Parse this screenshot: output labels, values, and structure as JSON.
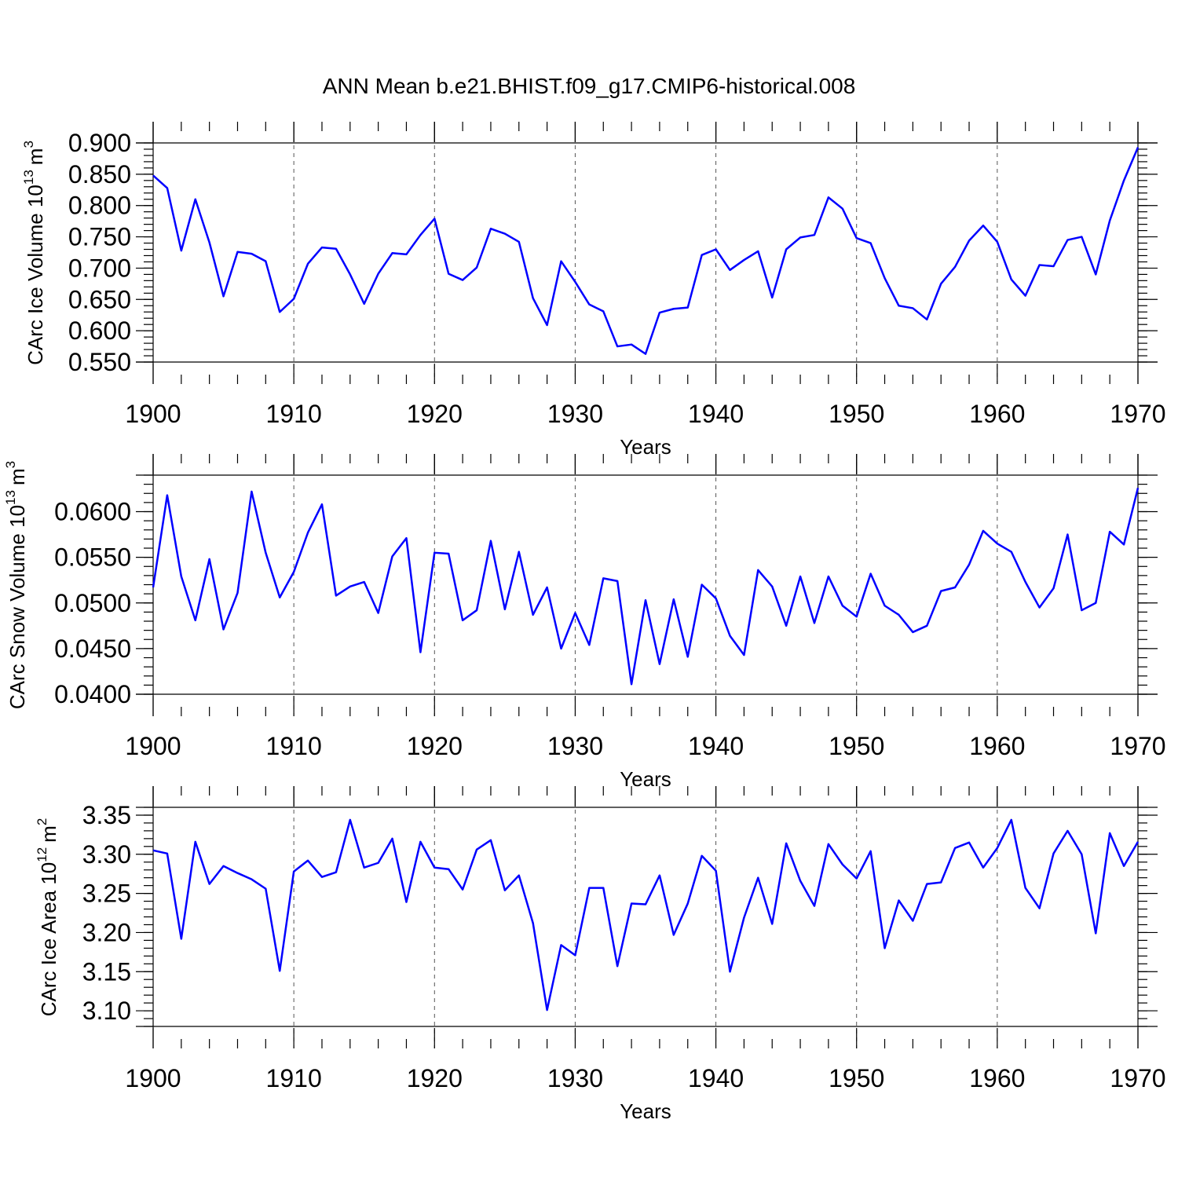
{
  "figure": {
    "title": "ANN Mean b.e21.BHIST.f09_g17.CMIP6-historical.008"
  },
  "chart_data": [
    {
      "type": "line",
      "title": "",
      "ylabel": "CArc Ice Volume 10",
      "ylabel_exp": "13",
      "ylabel_unit": "m",
      "ylabel_unit_exp": "3",
      "xlabel": "Years",
      "xlim": [
        1900,
        1970
      ],
      "ylim": [
        0.55,
        0.9
      ],
      "yticks": [
        0.55,
        0.6,
        0.65,
        0.7,
        0.75,
        0.8,
        0.85,
        0.9
      ],
      "ytick_labels": [
        "0.550",
        "0.600",
        "0.650",
        "0.700",
        "0.750",
        "0.800",
        "0.850",
        "0.900"
      ],
      "xticks": [
        1900,
        1910,
        1920,
        1930,
        1940,
        1950,
        1960,
        1970
      ],
      "xtick_labels": [
        "1900",
        "1910",
        "1920",
        "1930",
        "1940",
        "1950",
        "1960",
        "1970"
      ],
      "grid": "vertical-dashed",
      "color": "#0000ff",
      "series": [
        {
          "values": [
            0.848,
            0.828,
            0.728,
            0.81,
            0.741,
            0.655,
            0.726,
            0.723,
            0.711,
            0.63,
            0.651,
            0.707,
            0.733,
            0.731,
            0.69,
            0.643,
            0.691,
            0.724,
            0.722,
            0.753,
            0.779,
            0.691,
            0.681,
            0.701,
            0.763,
            0.755,
            0.742,
            0.652,
            0.609,
            0.711,
            0.678,
            0.642,
            0.631,
            0.575,
            0.578,
            0.563,
            0.629,
            0.635,
            0.637,
            0.721,
            0.73,
            0.697,
            0.713,
            0.727,
            0.653,
            0.73,
            0.749,
            0.753,
            0.813,
            0.795,
            0.748,
            0.74,
            0.684,
            0.64,
            0.636,
            0.618,
            0.675,
            0.702,
            0.744,
            0.768,
            0.742,
            0.682,
            0.656,
            0.705,
            0.703,
            0.745,
            0.75,
            0.69,
            0.776,
            0.84,
            0.893
          ]
        }
      ]
    },
    {
      "type": "line",
      "title": "",
      "ylabel": "CArc Snow Volume 10",
      "ylabel_exp": "13",
      "ylabel_unit": "m",
      "ylabel_unit_exp": "3",
      "xlabel": "Years",
      "xlim": [
        1900,
        1970
      ],
      "ylim": [
        0.04,
        0.064
      ],
      "yticks": [
        0.04,
        0.045,
        0.05,
        0.055,
        0.06
      ],
      "ytick_labels": [
        "0.0400",
        "0.0450",
        "0.0500",
        "0.0550",
        "0.0600"
      ],
      "xticks": [
        1900,
        1910,
        1920,
        1930,
        1940,
        1950,
        1960,
        1970
      ],
      "xtick_labels": [
        "1900",
        "1910",
        "1920",
        "1930",
        "1940",
        "1950",
        "1960",
        "1970"
      ],
      "grid": "vertical-dashed",
      "color": "#0000ff",
      "series": [
        {
          "values": [
            0.0517,
            0.0618,
            0.0529,
            0.0481,
            0.0548,
            0.0471,
            0.0511,
            0.0622,
            0.0555,
            0.0506,
            0.0534,
            0.0577,
            0.0608,
            0.0508,
            0.0518,
            0.0523,
            0.0489,
            0.0551,
            0.0571,
            0.0446,
            0.0555,
            0.0554,
            0.0481,
            0.0492,
            0.0568,
            0.0493,
            0.0556,
            0.0487,
            0.0517,
            0.045,
            0.0489,
            0.0454,
            0.0527,
            0.0524,
            0.0411,
            0.0503,
            0.0433,
            0.0504,
            0.0441,
            0.052,
            0.0505,
            0.0464,
            0.0443,
            0.0536,
            0.0518,
            0.0475,
            0.0529,
            0.0478,
            0.0529,
            0.0497,
            0.0485,
            0.0532,
            0.0497,
            0.0487,
            0.0468,
            0.0475,
            0.0513,
            0.0517,
            0.0542,
            0.0579,
            0.0565,
            0.0556,
            0.0523,
            0.0495,
            0.0516,
            0.0575,
            0.0492,
            0.05,
            0.0578,
            0.0564,
            0.0626
          ]
        }
      ]
    },
    {
      "type": "line",
      "title": "",
      "ylabel": "CArc Ice Area 10",
      "ylabel_exp": "12",
      "ylabel_unit": "m",
      "ylabel_unit_exp": "2",
      "xlabel": "Years",
      "xlim": [
        1900,
        1970
      ],
      "ylim": [
        3.08,
        3.36
      ],
      "yticks": [
        3.1,
        3.15,
        3.2,
        3.25,
        3.3,
        3.35
      ],
      "ytick_labels": [
        "3.10",
        "3.15",
        "3.20",
        "3.25",
        "3.30",
        "3.35"
      ],
      "xticks": [
        1900,
        1910,
        1920,
        1930,
        1940,
        1950,
        1960,
        1970
      ],
      "xtick_labels": [
        "1900",
        "1910",
        "1920",
        "1930",
        "1940",
        "1950",
        "1960",
        "1970"
      ],
      "grid": "vertical-dashed",
      "color": "#0000ff",
      "series": [
        {
          "values": [
            3.305,
            3.301,
            3.192,
            3.316,
            3.262,
            3.285,
            3.276,
            3.268,
            3.256,
            3.151,
            3.278,
            3.292,
            3.271,
            3.277,
            3.344,
            3.283,
            3.289,
            3.32,
            3.239,
            3.316,
            3.283,
            3.281,
            3.255,
            3.306,
            3.318,
            3.254,
            3.273,
            3.212,
            3.101,
            3.184,
            3.171,
            3.257,
            3.257,
            3.157,
            3.237,
            3.236,
            3.273,
            3.197,
            3.237,
            3.298,
            3.279,
            3.15,
            3.219,
            3.27,
            3.211,
            3.314,
            3.266,
            3.234,
            3.313,
            3.287,
            3.269,
            3.304,
            3.18,
            3.241,
            3.215,
            3.262,
            3.264,
            3.308,
            3.315,
            3.283,
            3.308,
            3.344,
            3.257,
            3.231,
            3.301,
            3.33,
            3.3,
            3.199,
            3.327,
            3.285,
            3.316
          ]
        }
      ]
    }
  ]
}
